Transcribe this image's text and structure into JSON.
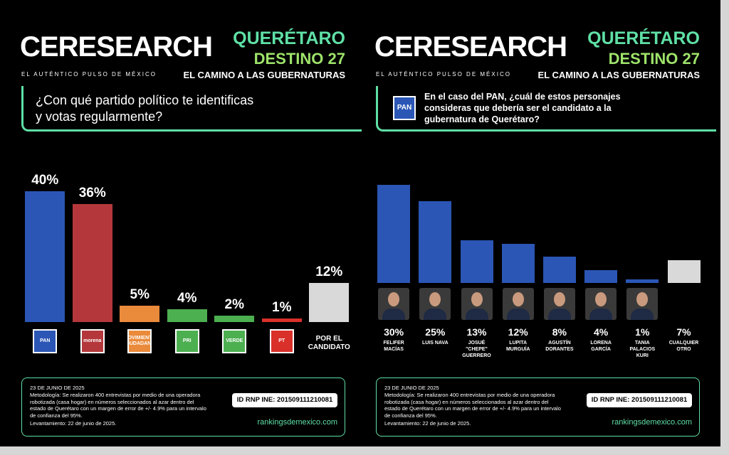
{
  "chart_data": [
    {
      "type": "bar",
      "brand": "CERESEARCH",
      "tagline": "EL AUTÉNTICO PULSO DE MÉXICO",
      "region": "QUERÉTARO",
      "subtitle": "DESTINO 27",
      "kicker": "EL CAMINO A LAS GUBERNATURAS",
      "title": "¿Con qué partido político te identificas y votas regularmente?",
      "categories": [
        "PAN",
        "morena",
        "MOVIMIENTO CIUDADANO",
        "PRI",
        "VERDE",
        "PT",
        "POR EL CANDIDATO"
      ],
      "values": [
        40,
        36,
        5,
        4,
        2,
        1,
        12
      ],
      "value_labels": [
        "40%",
        "36%",
        "5%",
        "4%",
        "2%",
        "1%",
        "12%"
      ],
      "colors": [
        "#2b56b5",
        "#b4383b",
        "#ea8a3b",
        "#4caf50",
        "#4caf50",
        "#d9302a",
        "#d9d9d9"
      ],
      "footer": {
        "date": "23 DE JUNIO DE 2025",
        "methodology": "Metodología: Se realizaron 400 entrevistas por medio de una operadora robotizada (casa hogar) en números seleccionados al azar dentro del estado de Querétaro con un margen de error de +/- 4.9% para un intervalo de confianza del 95%.",
        "fieldwork": "Levantamiento: 22 de junio de 2025.",
        "rnp": "ID RNP INE: 201509111210081",
        "url": "rankingsdemexico.com"
      }
    },
    {
      "type": "bar",
      "brand": "CERESEARCH",
      "tagline": "EL AUTÉNTICO PULSO DE MÉXICO",
      "region": "QUERÉTARO",
      "subtitle": "DESTINO 27",
      "kicker": "EL CAMINO A LAS GUBERNATURAS",
      "title_logo": "PAN",
      "title": "En el caso del PAN, ¿cuál de estos personajes consideras que debería ser el candidato a la gubernatura de Querétaro?",
      "categories": [
        "FELIFER MACÍAS",
        "LUIS NAVA",
        "JOSUÉ \"CHEPE\" GUERRERO",
        "LUPITA MURGUÍA",
        "AGUSTÍN DORANTES",
        "LORENA GARCÍA",
        "TANIA PALACIOS KURI",
        "CUALQUIER OTRO"
      ],
      "values": [
        30,
        25,
        13,
        12,
        8,
        4,
        1,
        7
      ],
      "value_labels": [
        "30%",
        "25%",
        "13%",
        "12%",
        "8%",
        "4%",
        "1%",
        "7%"
      ],
      "colors": [
        "#2b56b5",
        "#2b56b5",
        "#2b56b5",
        "#2b56b5",
        "#2b56b5",
        "#2b56b5",
        "#2b56b5",
        "#d9d9d9"
      ],
      "footer": {
        "date": "23 DE JUNIO DE 2025",
        "methodology": "Metodología: Se realizaron 400 entrevistas por medio de una operadora robotizada (casa hogar) en números seleccionados al azar dentro del estado de Querétaro con un margen de error de +/- 4.9% para un intervalo de confianza del 95%.",
        "fieldwork": "Levantamiento: 22 de junio de 2025.",
        "rnp": "ID RNP INE: 201509111210081",
        "url": "rankingsdemexico.com"
      }
    }
  ]
}
